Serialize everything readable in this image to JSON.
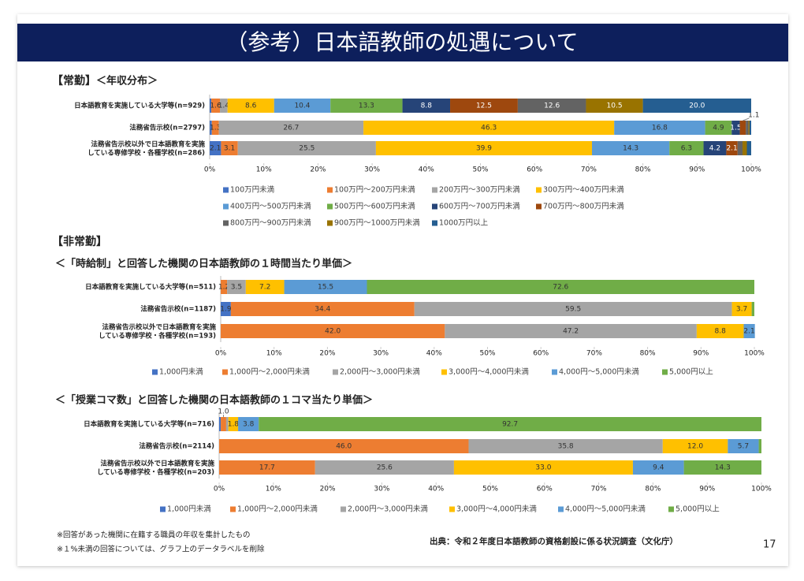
{
  "title": "（参考）日本語教師の処遇について",
  "sections": {
    "full_time": "【常勤】",
    "part_time": "【非常勤】"
  },
  "chart_data": [
    {
      "type": "bar",
      "orientation": "horizontal",
      "stacked": true,
      "title": "＜年収分布＞",
      "categories": [
        "日本語教育を実施している大学等(n=929)",
        "法務省告示校(n=2797)",
        "法務省告示校以外で日本語教育を実施\nしている専修学校・各種学校(n=286)"
      ],
      "series": [
        {
          "name": "100万円未満",
          "color": "#4472C4",
          "values": [
            0.3,
            0.4,
            2.1
          ],
          "value_labels": [
            null,
            null,
            "2.1"
          ]
        },
        {
          "name": "100万円～200万円未満",
          "color": "#ED7D31",
          "values": [
            1.6,
            1.3,
            3.1
          ],
          "value_labels": [
            "1.6",
            "1.3",
            "3.1"
          ]
        },
        {
          "name": "200万円～300万円未満",
          "color": "#A5A5A5",
          "values": [
            1.4,
            26.7,
            25.5
          ],
          "value_labels": [
            "1.4",
            "26.7",
            "25.5"
          ]
        },
        {
          "name": "300万円～400万円未満",
          "color": "#FFC000",
          "values": [
            8.6,
            46.3,
            39.9
          ],
          "value_labels": [
            "8.6",
            "46.3",
            "39.9"
          ]
        },
        {
          "name": "400万円～500万円未満",
          "color": "#5B9BD5",
          "values": [
            10.4,
            16.8,
            14.3
          ],
          "value_labels": [
            "10.4",
            "16.8",
            "14.3"
          ]
        },
        {
          "name": "500万円～600万円未満",
          "color": "#70AD47",
          "values": [
            13.3,
            4.9,
            6.3
          ],
          "value_labels": [
            "13.3",
            "4.9",
            "6.3"
          ]
        },
        {
          "name": "600万円～700万円未満",
          "color": "#264478",
          "values": [
            8.8,
            1.5,
            4.2
          ],
          "value_labels": [
            "8.8",
            "1.5",
            "4.2"
          ]
        },
        {
          "name": "700万円～800万円未満",
          "color": "#9E480E",
          "values": [
            12.5,
            1.1,
            2.1
          ],
          "value_labels": [
            "12.5",
            "1.1",
            "2.1"
          ]
        },
        {
          "name": "800万円～900万円未満",
          "color": "#636363",
          "values": [
            12.6,
            0.5,
            0.9
          ],
          "value_labels": [
            "12.6",
            null,
            null
          ]
        },
        {
          "name": "900万円～1000万円未満",
          "color": "#997300",
          "values": [
            10.5,
            0.2,
            0.8
          ],
          "value_labels": [
            "10.5",
            null,
            null
          ]
        },
        {
          "name": "1000万円以上",
          "color": "#255E91",
          "values": [
            20,
            0.3,
            0.8
          ],
          "value_labels": [
            "20.0",
            null,
            null
          ]
        }
      ],
      "xlim": [
        0,
        100
      ],
      "xticks": [
        {
          "value": 0,
          "label": "0%"
        },
        {
          "value": 10,
          "label": "10%"
        },
        {
          "value": 20,
          "label": "20%"
        },
        {
          "value": 30,
          "label": "30%"
        },
        {
          "value": 40,
          "label": "40%"
        },
        {
          "value": 50,
          "label": "50%"
        },
        {
          "value": 60,
          "label": "60%"
        },
        {
          "value": 70,
          "label": "70%"
        },
        {
          "value": 80,
          "label": "80%"
        },
        {
          "value": 90,
          "label": "90%"
        },
        {
          "value": 100,
          "label": "100%"
        }
      ]
    },
    {
      "type": "bar",
      "orientation": "horizontal",
      "stacked": true,
      "title": "＜「時給制」と回答した機関の日本語教師の１時間当たり単価＞",
      "categories": [
        "日本語教育を実施している大学等(n=511)",
        "法務省告示校(n=1187)",
        "法務省告示校以外で日本語教育を実施\nしている専修学校・各種学校(n=193)"
      ],
      "series": [
        {
          "name": "1,000円未満",
          "color": "#4472C4",
          "values": [
            0,
            1.9,
            0
          ],
          "value_labels": [
            null,
            "1.9",
            null
          ]
        },
        {
          "name": "1,000円～2,000円未満",
          "color": "#ED7D31",
          "values": [
            1.2,
            34.4,
            42
          ],
          "value_labels": [
            "1.2",
            "34.4",
            "42.0"
          ]
        },
        {
          "name": "2,000円～3,000円未満",
          "color": "#A5A5A5",
          "values": [
            3.5,
            59.5,
            47.2
          ],
          "value_labels": [
            "3.5",
            "59.5",
            "47.2"
          ]
        },
        {
          "name": "3,000円～4,000円未満",
          "color": "#FFC000",
          "values": [
            7.2,
            3.7,
            8.8
          ],
          "value_labels": [
            "7.2",
            "3.7",
            "8.8"
          ]
        },
        {
          "name": "4,000円～5,000円未満",
          "color": "#5B9BD5",
          "values": [
            15.5,
            0,
            2.1
          ],
          "value_labels": [
            "15.5",
            null,
            "2.1"
          ]
        },
        {
          "name": "5,000円以上",
          "color": "#70AD47",
          "values": [
            72.6,
            0.5,
            0
          ],
          "value_labels": [
            "72.6",
            null,
            null
          ]
        }
      ],
      "xlim": [
        0,
        100
      ],
      "xticks": [
        {
          "value": 0,
          "label": "0%"
        },
        {
          "value": 10,
          "label": "10%"
        },
        {
          "value": 20,
          "label": "20%"
        },
        {
          "value": 30,
          "label": "30%"
        },
        {
          "value": 40,
          "label": "40%"
        },
        {
          "value": 50,
          "label": "50%"
        },
        {
          "value": 60,
          "label": "60%"
        },
        {
          "value": 70,
          "label": "70%"
        },
        {
          "value": 80,
          "label": "80%"
        },
        {
          "value": 90,
          "label": "90%"
        },
        {
          "value": 100,
          "label": "100%"
        }
      ]
    },
    {
      "type": "bar",
      "orientation": "horizontal",
      "stacked": true,
      "title": "＜「授業コマ数」と回答した機関の日本語教師の１コマ当たり単価＞",
      "categories": [
        "日本語教育を実施している大学等(n=716)",
        "法務省告示校(n=2114)",
        "法務省告示校以外で日本語教育を実施\nしている専修学校・各種学校(n=203)"
      ],
      "series": [
        {
          "name": "1,000円未満",
          "color": "#4472C4",
          "values": [
            0.3,
            0,
            0
          ],
          "value_labels": [
            null,
            null,
            null
          ]
        },
        {
          "name": "1,000円～2,000円未満",
          "color": "#ED7D31",
          "values": [
            1,
            46,
            17.7
          ],
          "value_labels": [
            "1.0",
            "46.0",
            "17.7"
          ]
        },
        {
          "name": "2,000円～3,000円未満",
          "color": "#A5A5A5",
          "values": [
            0.4,
            35.8,
            25.6
          ],
          "value_labels": [
            null,
            "35.8",
            "25.6"
          ]
        },
        {
          "name": "3,000円～4,000円未満",
          "color": "#FFC000",
          "values": [
            1.8,
            12,
            33
          ],
          "value_labels": [
            "1.8",
            "12.0",
            "33.0"
          ]
        },
        {
          "name": "4,000円～5,000円未満",
          "color": "#5B9BD5",
          "values": [
            3.8,
            5.7,
            9.4
          ],
          "value_labels": [
            "3.8",
            "5.7",
            "9.4"
          ]
        },
        {
          "name": "5,000円以上",
          "color": "#70AD47",
          "values": [
            92.7,
            0.5,
            14.3
          ],
          "value_labels": [
            "92.7",
            null,
            "14.3"
          ]
        }
      ],
      "xlim": [
        0,
        100
      ],
      "xticks": [
        {
          "value": 0,
          "label": "0%"
        },
        {
          "value": 10,
          "label": "10%"
        },
        {
          "value": 20,
          "label": "20%"
        },
        {
          "value": 30,
          "label": "30%"
        },
        {
          "value": 40,
          "label": "40%"
        },
        {
          "value": 50,
          "label": "50%"
        },
        {
          "value": 60,
          "label": "60%"
        },
        {
          "value": 70,
          "label": "70%"
        },
        {
          "value": 80,
          "label": "80%"
        },
        {
          "value": 90,
          "label": "90%"
        },
        {
          "value": 100,
          "label": "100%"
        }
      ]
    }
  ],
  "notes": [
    "※回答があった機関に在籍する職員の年収を集計したもの",
    "※１%未満の回答については、グラフ上のデータラベルを削除"
  ],
  "source": "出典：令和２年度日本語教師の資格創設に係る状況調査（文化庁）",
  "page_number": "17"
}
